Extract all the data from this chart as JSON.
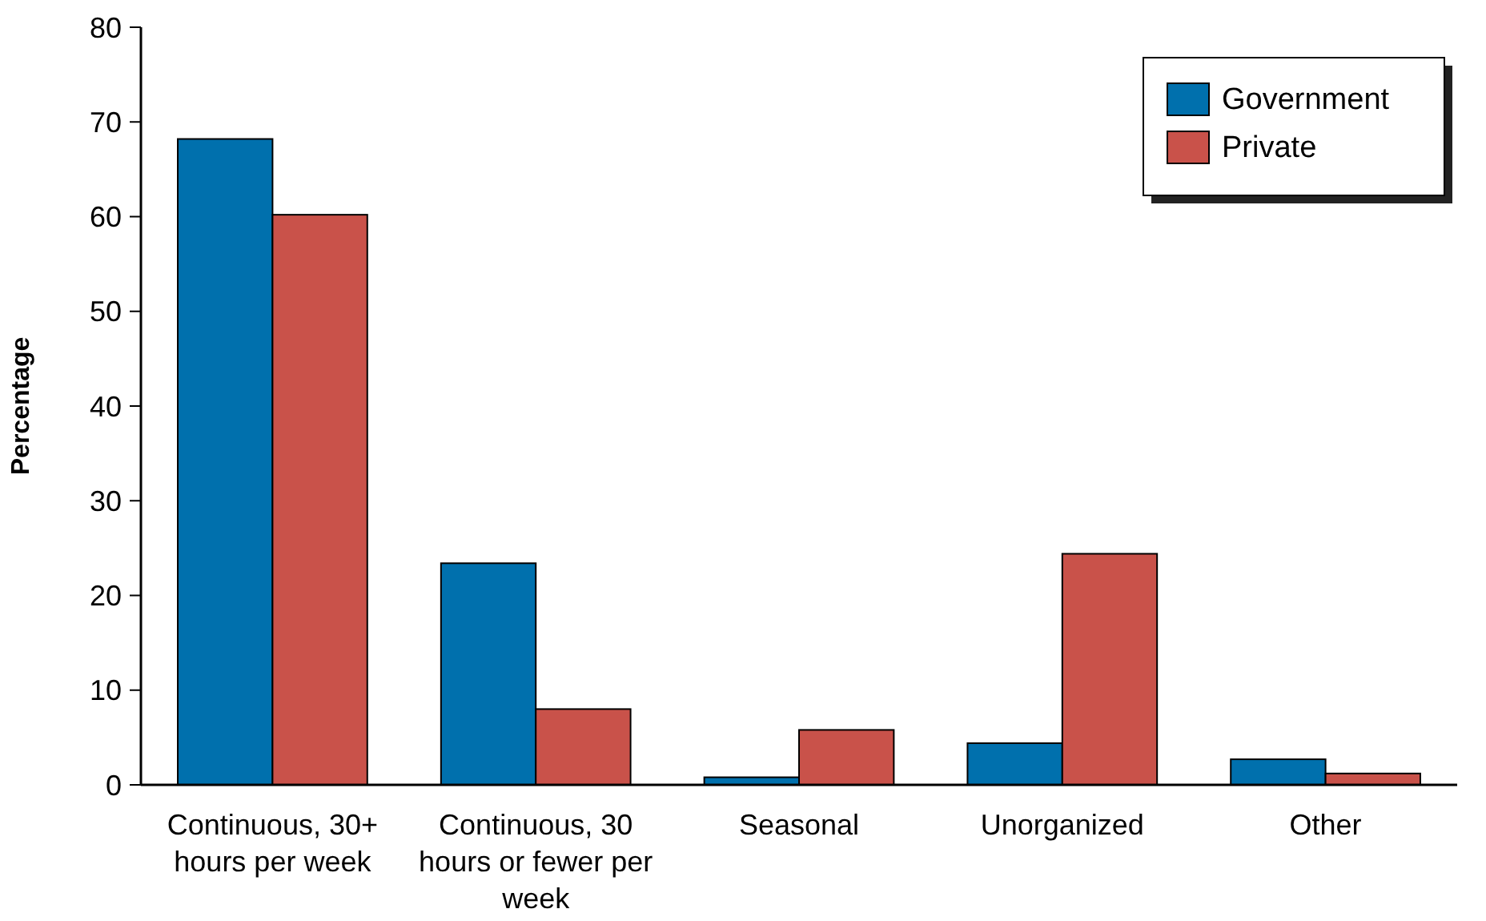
{
  "chart_data": {
    "type": "bar",
    "ylabel": "Percentage",
    "categories": [
      "Continuous, 30+ hours per week",
      "Continuous, 30 hours or fewer per week",
      "Seasonal",
      "Unorganized",
      "Other"
    ],
    "series": [
      {
        "name": "Government",
        "color": "#0070ad",
        "values": [
          68.2,
          23.4,
          0.8,
          4.4,
          2.7
        ]
      },
      {
        "name": "Private",
        "color": "#c9524a",
        "values": [
          60.2,
          8.0,
          5.8,
          24.4,
          1.2
        ]
      }
    ],
    "ylim": [
      0,
      80
    ],
    "yticks": [
      0,
      10,
      20,
      30,
      40,
      50,
      60,
      70,
      80
    ],
    "legend": "top right"
  }
}
